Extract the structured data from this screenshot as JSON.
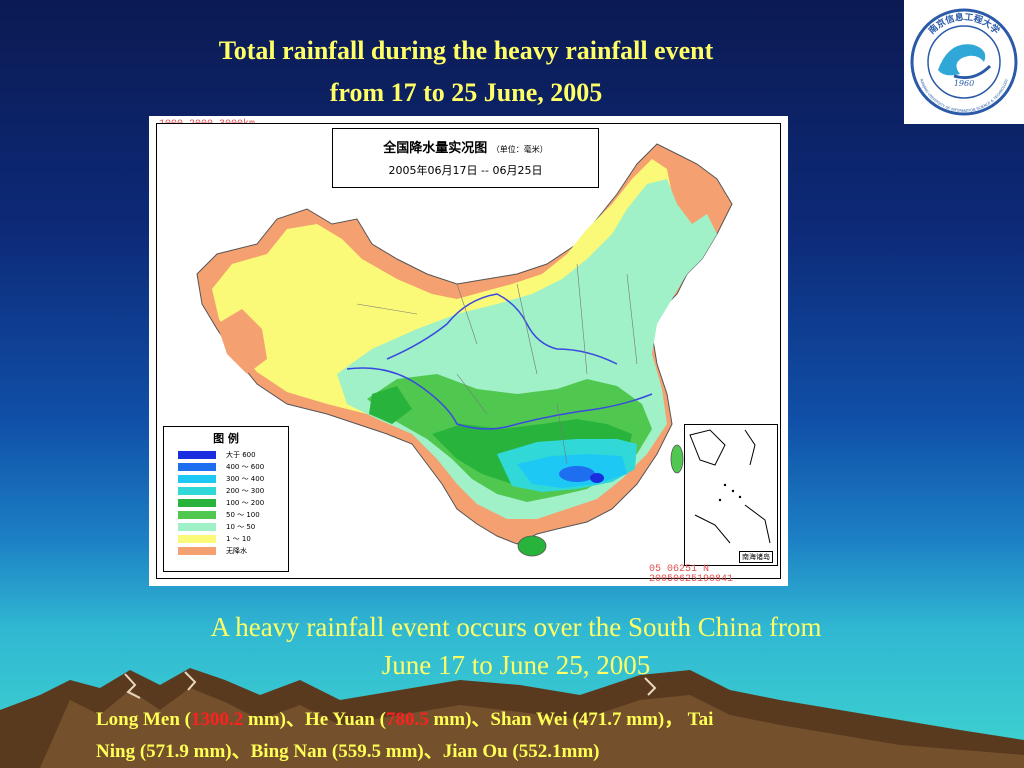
{
  "title": {
    "line1": "Total rainfall during the heavy rainfall event",
    "line2": "from 17 to 25 June, 2005"
  },
  "logo": {
    "text_top": "南京信息工程大学",
    "year": "1960",
    "text_bottom": "NANJING UNIVERSITY OF INFORMATION SCIENCE & TECHNOLOGY"
  },
  "map": {
    "header_title": "全国降水量实况图",
    "header_unit": "（单位：毫米）",
    "header_dates": "2005年06月17日 -- 06月25日",
    "stamp_top": "1000 2000 3000km",
    "stamp_bottom_1": "05 06251 N",
    "stamp_bottom_2": "20050625190841",
    "inset_label": "南海诸岛",
    "legend": {
      "title": "图    例",
      "items": [
        {
          "label": "大于 600",
          "color": "#1a2ee0"
        },
        {
          "label": "400 ～ 600",
          "color": "#1e6ef0"
        },
        {
          "label": "300 ～ 400",
          "color": "#1ec8f5"
        },
        {
          "label": "200 ～ 300",
          "color": "#30d8d8"
        },
        {
          "label": "100 ～ 200",
          "color": "#28b43c"
        },
        {
          "label": "50 ～ 100",
          "color": "#50c850"
        },
        {
          "label": "10 ～ 50",
          "color": "#a0f0c8"
        },
        {
          "label": "1 ～ 10",
          "color": "#fafa78"
        },
        {
          "label": "无降水",
          "color": "#f5a070"
        }
      ]
    }
  },
  "subtitle": {
    "line1": "A heavy rainfall event occurs over the South China from",
    "line2": "June 17 to June 25, 2005"
  },
  "stations": {
    "s1_pre": "Long Men (",
    "s1_val": "1300.2",
    "s1_post": " mm)、He Yuan (",
    "s2_val": "780.5",
    "s2_post": " mm)、Shan Wei (471.7 mm)， Tai",
    "line2": "Ning (571.9 mm)、Bing Nan (559.5 mm)、Jian Ou (552.1mm)"
  }
}
